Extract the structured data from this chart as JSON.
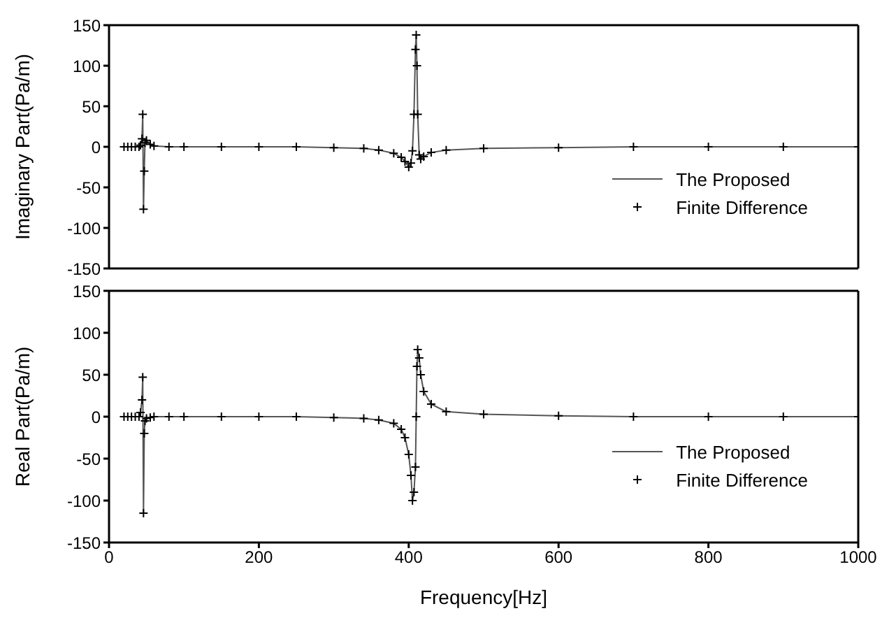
{
  "chart_data": [
    {
      "type": "line",
      "ylabel": "Imaginary Part(Pa/m)",
      "x": [
        20,
        25,
        30,
        35,
        40,
        42,
        44,
        45,
        46,
        47,
        48,
        50,
        55,
        60,
        80,
        100,
        150,
        200,
        250,
        300,
        340,
        360,
        380,
        390,
        395,
        400,
        403,
        405,
        407,
        409,
        410,
        411,
        412,
        414,
        416,
        420,
        430,
        450,
        500,
        600,
        700,
        800,
        900,
        1000
      ],
      "series": [
        {
          "name": "The Proposed",
          "color": "#555555",
          "marker": "none",
          "values": [
            0,
            0,
            0,
            0,
            0,
            2,
            10,
            40,
            -77,
            -30,
            5,
            8,
            3,
            1,
            0,
            0,
            0,
            0,
            0,
            -1,
            -2,
            -4,
            -8,
            -13,
            -18,
            -25,
            -20,
            -5,
            40,
            120,
            138,
            100,
            40,
            -10,
            -15,
            -12,
            -7,
            -4,
            -2,
            -1,
            0,
            0,
            0,
            0
          ]
        },
        {
          "name": "Finite Difference",
          "type": "scatter",
          "color": "#000000",
          "marker": "cross",
          "values": [
            0,
            0,
            0,
            0,
            0,
            2,
            10,
            40,
            -77,
            -30,
            5,
            8,
            3,
            1,
            0,
            0,
            0,
            0,
            0,
            -1,
            -2,
            -4,
            -8,
            -13,
            -18,
            -25,
            -20,
            -5,
            40,
            120,
            138,
            100,
            40,
            -10,
            -15,
            -12,
            -7,
            -4,
            -2,
            -1,
            0,
            0,
            0,
            0
          ]
        }
      ],
      "xlim": [
        0,
        1000
      ],
      "xticks": [
        0,
        200,
        400,
        600,
        800,
        1000
      ],
      "ylim": [
        -150,
        150
      ],
      "yticks": [
        -150,
        -100,
        -50,
        0,
        50,
        100,
        150
      ],
      "tick_labels": "y",
      "legend": "right"
    },
    {
      "type": "line",
      "xlabel": "Frequency[Hz]",
      "ylabel": "Real Part(Pa/m)",
      "x": [
        20,
        25,
        30,
        35,
        40,
        42,
        44,
        45,
        46,
        47,
        48,
        50,
        55,
        60,
        80,
        100,
        150,
        200,
        250,
        300,
        340,
        360,
        380,
        390,
        395,
        400,
        403,
        405,
        407,
        409,
        410,
        411,
        412,
        414,
        416,
        420,
        430,
        450,
        500,
        600,
        700,
        800,
        900,
        1000
      ],
      "series": [
        {
          "name": "The Proposed",
          "color": "#555555",
          "marker": "none",
          "values": [
            0,
            0,
            0,
            0,
            0,
            5,
            20,
            47,
            -115,
            -20,
            -5,
            -2,
            -1,
            0,
            0,
            0,
            0,
            0,
            0,
            -1,
            -2,
            -4,
            -8,
            -15,
            -25,
            -45,
            -70,
            -100,
            -90,
            -60,
            0,
            60,
            80,
            70,
            50,
            30,
            15,
            6,
            3,
            1,
            0,
            0,
            0,
            0
          ]
        },
        {
          "name": "Finite Difference",
          "type": "scatter",
          "color": "#000000",
          "marker": "cross",
          "values": [
            0,
            0,
            0,
            0,
            0,
            5,
            20,
            47,
            -115,
            -20,
            -5,
            -2,
            -1,
            0,
            0,
            0,
            0,
            0,
            0,
            -1,
            -2,
            -4,
            -8,
            -15,
            -25,
            -45,
            -70,
            -100,
            -90,
            -60,
            0,
            60,
            80,
            70,
            50,
            30,
            15,
            6,
            3,
            1,
            0,
            0,
            0,
            0
          ]
        }
      ],
      "xlim": [
        0,
        1000
      ],
      "xticks": [
        0,
        200,
        400,
        600,
        800,
        1000
      ],
      "ylim": [
        -150,
        150
      ],
      "yticks": [
        -150,
        -100,
        -50,
        0,
        50,
        100,
        150
      ],
      "legend": "right"
    }
  ]
}
